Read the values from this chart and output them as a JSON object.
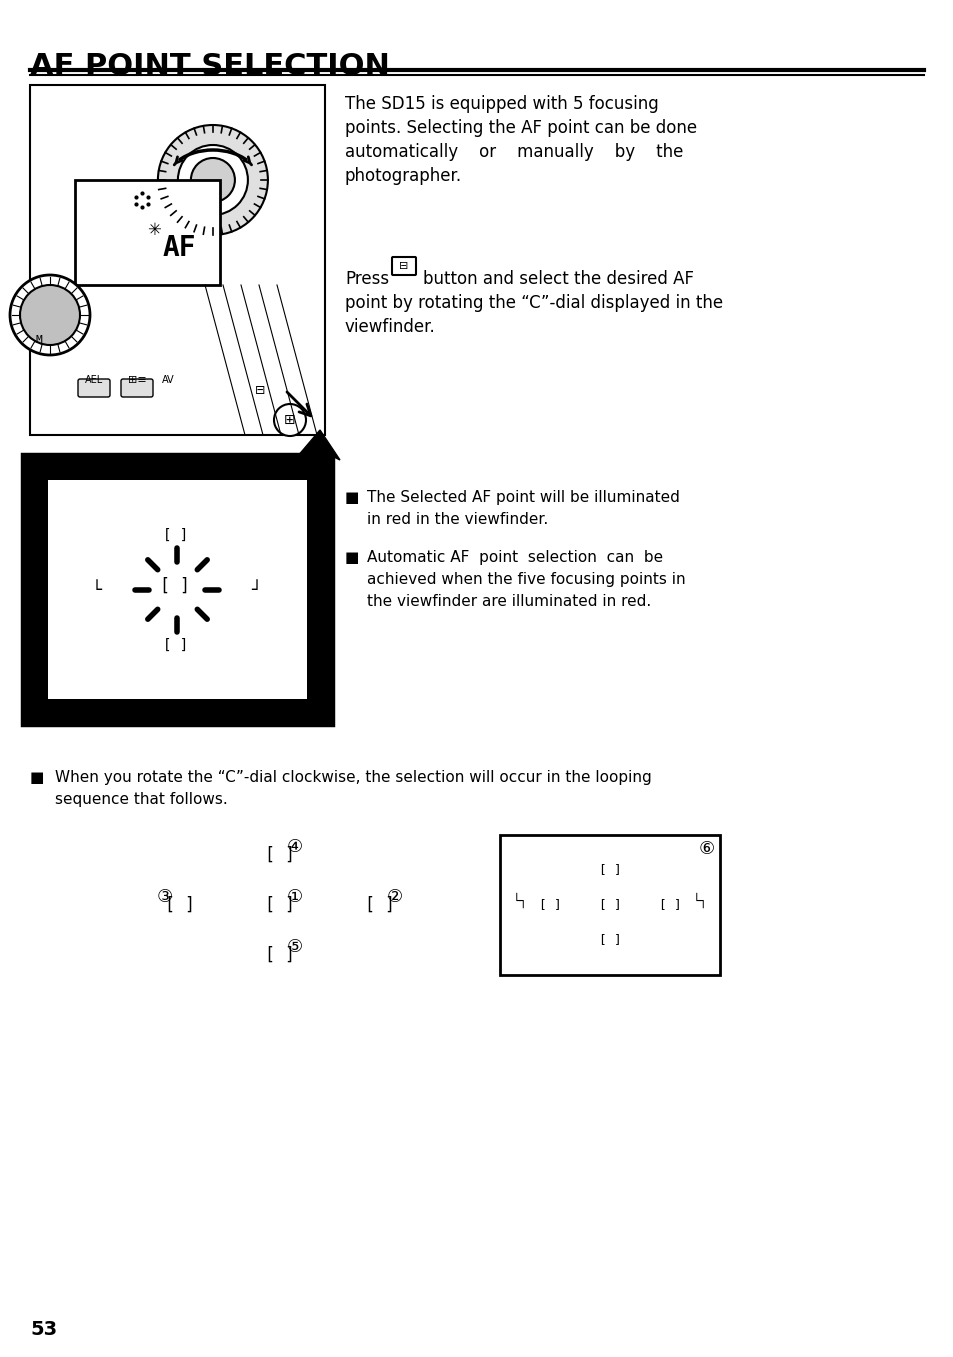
{
  "title": "AF POINT SELECTION",
  "page_number": "53",
  "bg_color": "#ffffff",
  "text_color": "#000000",
  "body_text_1": "The SD15 is equipped with 5 focusing points. Selecting the AF point can be done automatically or manually by the photographer.",
  "body_text_2": "Press        button and select the desired AF point by rotating the “C”-dial displayed in the viewfinder.",
  "bullet_1": "The Selected AF point will be illuminated in red in the viewfinder.",
  "bullet_2": "Automatic AF point selection can be achieved when the five focusing points in the viewfinder are illuminated in red.",
  "bullet_3": "When you rotate the “C”-dial clockwise, the selection will occur in the looping sequence that follows."
}
